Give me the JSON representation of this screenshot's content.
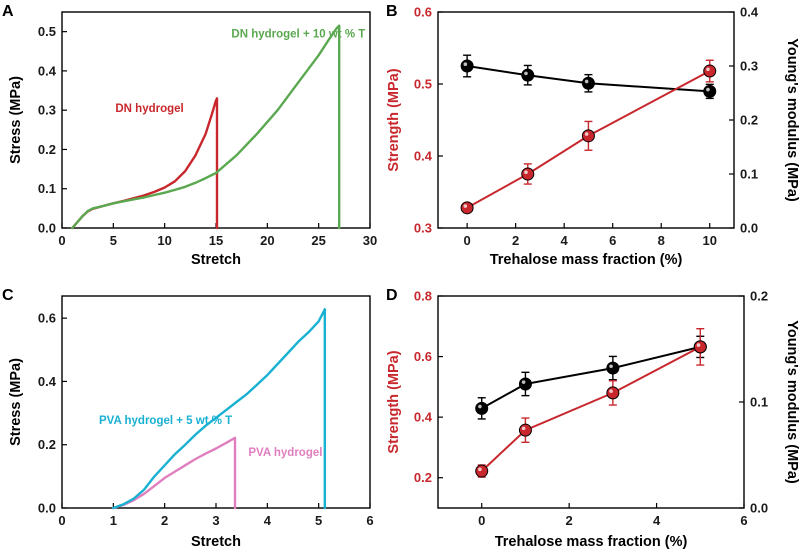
{
  "chart_data": [
    {
      "panel": "A",
      "type": "line",
      "xlabel": "Stretch",
      "ylabel": "Stress (MPa)",
      "xlim": [
        0,
        30
      ],
      "ylim": [
        0,
        0.55
      ],
      "xticks": [
        "0",
        "5",
        "10",
        "15",
        "20",
        "25",
        "30"
      ],
      "yticks": [
        "0.0",
        "0.1",
        "0.2",
        "0.3",
        "0.4",
        "0.5"
      ],
      "series": [
        {
          "name": "DN hydrogel",
          "color": "#c8282d",
          "x": [
            1,
            1.5,
            2,
            2.5,
            3,
            4,
            5,
            6,
            7,
            8,
            9,
            10,
            11,
            12,
            13,
            14,
            14.6,
            15,
            15.1,
            15.1
          ],
          "y": [
            0,
            0.015,
            0.03,
            0.042,
            0.049,
            0.056,
            0.063,
            0.069,
            0.076,
            0.083,
            0.092,
            0.103,
            0.119,
            0.145,
            0.185,
            0.24,
            0.29,
            0.325,
            0.33,
            0
          ]
        },
        {
          "name": "DN hydrogel + 10 wt % T",
          "color": "#5aa84f",
          "x": [
            1,
            1.5,
            2,
            2.5,
            3,
            4,
            5,
            6,
            7,
            8,
            9,
            10,
            11,
            12,
            13,
            14,
            15,
            17,
            19,
            21,
            23,
            25,
            26,
            26.8,
            27,
            27
          ],
          "y": [
            0,
            0.015,
            0.03,
            0.043,
            0.05,
            0.056,
            0.063,
            0.068,
            0.073,
            0.078,
            0.084,
            0.09,
            0.097,
            0.105,
            0.115,
            0.127,
            0.14,
            0.185,
            0.24,
            0.3,
            0.37,
            0.44,
            0.48,
            0.51,
            0.515,
            0
          ]
        }
      ],
      "annotations": [
        {
          "text": "DN hydrogel",
          "color": "#c8282d",
          "x": 5.2,
          "y": 0.295
        },
        {
          "text": "DN hydrogel + 10 wt % T",
          "color": "#5aa84f",
          "x": 16.5,
          "y": 0.485
        }
      ]
    },
    {
      "panel": "B",
      "type": "line",
      "xlabel": "Trehalose mass fraction (%)",
      "ylabel": "Strength (MPa)",
      "ylabel_right": "Young's modulus (MPa)",
      "xlim": [
        -1.2,
        11
      ],
      "ylim": [
        0.3,
        0.6
      ],
      "ylim_right": [
        0,
        0.4
      ],
      "xticks": [
        "0",
        "2",
        "4",
        "6",
        "8",
        "10"
      ],
      "yticks": [
        "0.3",
        "0.4",
        "0.5",
        "0.6"
      ],
      "yticks_right": [
        "0.0",
        "0.1",
        "0.2",
        "0.3",
        "0.4"
      ],
      "strength_color": "#c8282d",
      "modulus_color": "#000000",
      "x": [
        0,
        2.5,
        5,
        10
      ],
      "strength": [
        0.328,
        0.375,
        0.428,
        0.518
      ],
      "strength_err": [
        0.006,
        0.014,
        0.02,
        0.015
      ],
      "modulus": [
        0.3,
        0.283,
        0.268,
        0.253
      ],
      "modulus_err": [
        0.02,
        0.018,
        0.016,
        0.013
      ]
    },
    {
      "panel": "C",
      "type": "line",
      "xlabel": "Stretch",
      "ylabel": "Stress (MPa)",
      "xlim": [
        0,
        6
      ],
      "ylim": [
        0,
        0.67
      ],
      "xticks": [
        "0",
        "1",
        "2",
        "3",
        "4",
        "5",
        "6"
      ],
      "yticks": [
        "0.0",
        "0.2",
        "0.4",
        "0.6"
      ],
      "series": [
        {
          "name": "PVA hydrogel",
          "color": "#e07fbf",
          "x": [
            1,
            1.2,
            1.4,
            1.6,
            1.8,
            2,
            2.2,
            2.4,
            2.6,
            2.8,
            3,
            3.2,
            3.37,
            3.37
          ],
          "y": [
            0,
            0.01,
            0.025,
            0.045,
            0.07,
            0.095,
            0.115,
            0.135,
            0.155,
            0.172,
            0.188,
            0.206,
            0.222,
            0
          ]
        },
        {
          "name": "PVA hydrogel + 5 wt % T",
          "color": "#19b1d1",
          "x": [
            1,
            1.2,
            1.4,
            1.6,
            1.8,
            2,
            2.2,
            2.4,
            2.6,
            2.8,
            3,
            3.2,
            3.4,
            3.6,
            3.8,
            4,
            4.2,
            4.4,
            4.6,
            4.8,
            5,
            5.12,
            5.12
          ],
          "y": [
            0,
            0.012,
            0.03,
            0.058,
            0.1,
            0.135,
            0.17,
            0.2,
            0.232,
            0.26,
            0.285,
            0.31,
            0.335,
            0.36,
            0.39,
            0.42,
            0.455,
            0.49,
            0.525,
            0.555,
            0.59,
            0.628,
            0
          ]
        }
      ],
      "annotations": [
        {
          "text": "PVA hydrogel + 5 wt % T",
          "color": "#19b1d1",
          "x": 0.72,
          "y": 0.265
        },
        {
          "text": "PVA hydrogel",
          "color": "#e07fbf",
          "x": 3.63,
          "y": 0.165
        }
      ]
    },
    {
      "panel": "D",
      "type": "line",
      "xlabel": "Trehalose mass fraction (%)",
      "ylabel": "Strength (MPa)",
      "ylabel_right": "Young's modulus (MPa)",
      "xlim": [
        -1,
        6
      ],
      "ylim": [
        0.1,
        0.8
      ],
      "ylim_right": [
        0,
        0.2
      ],
      "xticks": [
        "0",
        "2",
        "4",
        "6"
      ],
      "yticks": [
        "0.2",
        "0.4",
        "0.6",
        "0.8"
      ],
      "yticks_right": [
        "0.0",
        "0.1",
        "0.2"
      ],
      "strength_color": "#c8282d",
      "modulus_color": "#000000",
      "x": [
        0,
        1,
        3,
        5
      ],
      "strength": [
        0.222,
        0.357,
        0.48,
        0.632
      ],
      "strength_err": [
        0.02,
        0.04,
        0.04,
        0.06
      ],
      "modulus": [
        0.094,
        0.117,
        0.132,
        0.152
      ],
      "modulus_err": [
        0.01,
        0.011,
        0.011,
        0.01
      ]
    }
  ]
}
